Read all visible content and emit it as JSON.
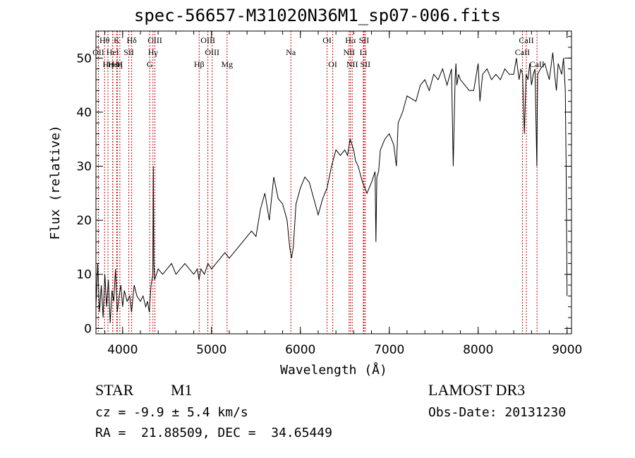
{
  "title": "spec-56657-M31020N36M1_sp07-006.fits",
  "info": {
    "class_label": "STAR",
    "subclass": "M1",
    "survey": "LAMOST DR3",
    "cz": "cz = -9.9 ± 5.4 km/s",
    "obs_date": "Obs-Date: 20131230",
    "coords": "RA =  21.88509, DEC =  34.65449"
  },
  "chart_data": {
    "type": "line",
    "xlabel": "Wavelength (Å)",
    "ylabel": "Flux (relative)",
    "xlim": [
      3700,
      9050
    ],
    "ylim": [
      -1,
      55
    ],
    "xticks": [
      4000,
      5000,
      6000,
      7000,
      8000,
      9000
    ],
    "yticks": [
      0,
      10,
      20,
      30,
      40,
      50
    ],
    "line_color": "#000000",
    "marker_color": "#cc0000",
    "spectrum": {
      "x": [
        3700,
        3720,
        3740,
        3760,
        3780,
        3800,
        3820,
        3840,
        3860,
        3880,
        3900,
        3920,
        3940,
        3960,
        3980,
        4000,
        4020,
        4050,
        4080,
        4100,
        4130,
        4160,
        4200,
        4230,
        4260,
        4280,
        4300,
        4320,
        4340,
        4345,
        4352,
        4360,
        4380,
        4400,
        4450,
        4500,
        4550,
        4600,
        4650,
        4700,
        4750,
        4800,
        4840,
        4860,
        4880,
        4920,
        4960,
        5000,
        5050,
        5100,
        5150,
        5200,
        5250,
        5300,
        5350,
        5400,
        5450,
        5500,
        5550,
        5600,
        5650,
        5700,
        5750,
        5800,
        5850,
        5880,
        5900,
        5920,
        5950,
        6000,
        6050,
        6100,
        6150,
        6200,
        6250,
        6300,
        6350,
        6400,
        6450,
        6500,
        6530,
        6560,
        6580,
        6600,
        6620,
        6650,
        6700,
        6750,
        6800,
        6840,
        6850,
        6860,
        6880,
        6900,
        6950,
        7000,
        7050,
        7080,
        7100,
        7150,
        7200,
        7300,
        7350,
        7400,
        7450,
        7500,
        7550,
        7600,
        7650,
        7700,
        7720,
        7740,
        7750,
        7760,
        7780,
        7800,
        7850,
        7900,
        7950,
        8000,
        8020,
        8050,
        8100,
        8150,
        8200,
        8250,
        8300,
        8350,
        8400,
        8430,
        8460,
        8480,
        8500,
        8520,
        8540,
        8560,
        8580,
        8600,
        8620,
        8640,
        8660,
        8665,
        8670,
        8700,
        8750,
        8800,
        8840,
        8860,
        8880,
        8900,
        8920,
        8940,
        8960,
        8980,
        8990,
        9000
      ],
      "y": [
        4,
        12,
        3,
        8,
        2,
        10,
        4,
        9,
        1,
        7,
        5,
        11,
        3,
        6,
        8,
        4,
        7,
        5,
        6,
        3,
        8,
        6,
        5,
        6,
        4,
        5,
        3,
        8,
        10,
        30,
        12,
        9,
        10,
        11,
        10,
        11,
        12,
        10,
        11,
        12,
        11,
        10,
        11,
        9,
        11,
        10,
        12,
        11,
        12,
        13,
        14,
        13,
        14,
        15,
        16,
        17,
        18,
        17,
        22,
        25,
        20,
        28,
        24,
        23,
        20,
        15,
        13,
        15,
        23,
        26,
        28,
        27,
        24,
        21,
        24,
        26,
        30,
        33,
        32,
        33,
        32,
        35,
        34,
        33,
        31,
        30,
        27,
        25,
        27,
        29,
        16,
        28,
        29,
        33,
        35,
        36,
        34,
        30,
        38,
        40,
        43,
        42,
        45,
        46,
        44,
        47,
        46,
        48,
        45,
        48,
        30,
        46,
        49,
        45,
        47,
        46,
        45,
        44,
        44,
        49,
        42,
        47,
        48,
        46,
        47,
        46,
        48,
        47,
        47,
        50,
        46,
        48,
        47,
        36,
        47,
        46,
        49,
        45,
        47,
        48,
        30,
        40,
        47,
        48,
        49,
        46,
        51,
        47,
        44,
        49,
        48,
        47,
        50,
        44,
        30,
        6
      ]
    },
    "lines": [
      {
        "name": "Hθ",
        "x": 3797,
        "row": 0
      },
      {
        "name": "OII",
        "x": 3727,
        "row": 1
      },
      {
        "name": "Hη",
        "x": 3835,
        "row": 2
      },
      {
        "name": "Hε",
        "x": 3889,
        "row": 2
      },
      {
        "name": "K",
        "x": 3934,
        "row": 0
      },
      {
        "name": "HeI",
        "x": 3889,
        "row": 1
      },
      {
        "name": "Hη",
        "x": 3940,
        "row": 2
      },
      {
        "name": "SII",
        "x": 4070,
        "row": 1
      },
      {
        "name": "H",
        "x": 3969,
        "row": 2
      },
      {
        "name": "Hδ",
        "x": 4102,
        "row": 0
      },
      {
        "name": "OIII",
        "x": 4363,
        "row": 0
      },
      {
        "name": "Hγ",
        "x": 4341,
        "row": 1
      },
      {
        "name": "G",
        "x": 4305,
        "row": 2
      },
      {
        "name": "Hβ",
        "x": 4861,
        "row": 2
      },
      {
        "name": "OIII",
        "x": 4959,
        "row": 0
      },
      {
        "name": "OIII",
        "x": 5007,
        "row": 1
      },
      {
        "name": "Mg",
        "x": 5175,
        "row": 2
      },
      {
        "name": "Na",
        "x": 5893,
        "row": 1
      },
      {
        "name": "OI",
        "x": 6300,
        "row": 0
      },
      {
        "name": "OI",
        "x": 6364,
        "row": 2
      },
      {
        "name": "Hα",
        "x": 6563,
        "row": 0
      },
      {
        "name": "SII",
        "x": 6716,
        "row": 0
      },
      {
        "name": "NII",
        "x": 6548,
        "row": 1
      },
      {
        "name": "Li",
        "x": 6708,
        "row": 1
      },
      {
        "name": "NII",
        "x": 6583,
        "row": 2
      },
      {
        "name": "SII",
        "x": 6731,
        "row": 2
      },
      {
        "name": "CaII",
        "x": 8542,
        "row": 0
      },
      {
        "name": "CaII",
        "x": 8498,
        "row": 1
      },
      {
        "name": "CaII",
        "x": 8662,
        "row": 2
      }
    ]
  }
}
